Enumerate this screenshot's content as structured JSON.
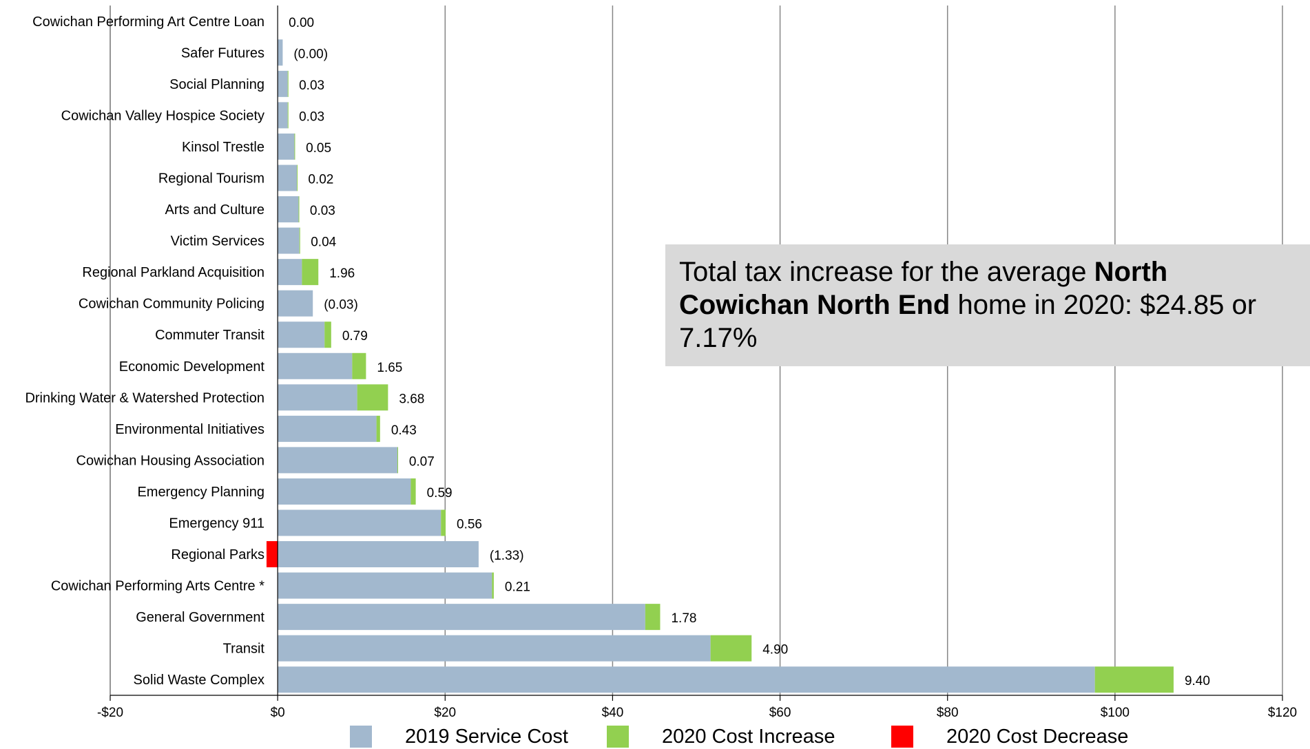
{
  "chart_data": {
    "type": "bar",
    "orientation": "horizontal",
    "stacked": true,
    "categories": [
      "Cowichan Performing Art Centre Loan",
      "Safer Futures",
      "Social Planning",
      "Cowichan Valley Hospice Society",
      "Kinsol Trestle",
      "Regional Tourism",
      "Arts and Culture",
      "Victim Services",
      "Regional Parkland Acquisition",
      "Cowichan Community Policing",
      "Commuter Transit",
      "Economic Development",
      "Drinking Water & Watershed Protection",
      "Environmental Initiatives",
      "Cowichan Housing Association",
      "Emergency Planning",
      "Emergency 911",
      "Regional Parks",
      "Cowichan Performing Arts Centre *",
      "General Government",
      "Transit",
      "Solid Waste Complex"
    ],
    "series": [
      {
        "name": "2019 Service Cost",
        "color": "#a2b8ce",
        "values": [
          0.0,
          0.6,
          1.2,
          1.2,
          2.0,
          2.3,
          2.5,
          2.6,
          2.9,
          4.2,
          5.6,
          8.9,
          9.5,
          11.8,
          14.3,
          15.9,
          19.5,
          24.0,
          25.6,
          43.9,
          51.7,
          97.6
        ]
      },
      {
        "name": "2020 Cost Increase",
        "color": "#92d050",
        "values": [
          0.0,
          0,
          0.03,
          0.03,
          0.05,
          0.02,
          0.03,
          0.04,
          1.96,
          0,
          0.79,
          1.65,
          3.68,
          0.43,
          0.07,
          0.59,
          0.56,
          0,
          0.21,
          1.78,
          4.9,
          9.4
        ]
      },
      {
        "name": "2020 Cost Decrease",
        "color": "#ff0000",
        "values": [
          0,
          0.0,
          0,
          0,
          0,
          0,
          0,
          0,
          0,
          0.03,
          0,
          0,
          0,
          0,
          0,
          0,
          0,
          1.33,
          0,
          0,
          0,
          0
        ]
      }
    ],
    "data_labels": [
      "0.00",
      "(0.00)",
      "0.03",
      "0.03",
      "0.05",
      "0.02",
      "0.03",
      "0.04",
      "1.96",
      "(0.03)",
      "0.79",
      "1.65",
      "3.68",
      "0.43",
      "0.07",
      "0.59",
      "0.56",
      "(1.33)",
      "0.21",
      "1.78",
      "4.90",
      "9.40"
    ],
    "x_ticks": [
      "-$20",
      "$0",
      "$20",
      "$40",
      "$60",
      "$80",
      "$100",
      "$120"
    ],
    "xlim": [
      -20,
      120
    ],
    "grid": "vertical",
    "legend_position": "bottom"
  },
  "callout": {
    "text_before": "Total tax increase for the average ",
    "text_bold": "North Cowichan North End",
    "text_after": " home in 2020: $24.85 or 7.17%"
  }
}
